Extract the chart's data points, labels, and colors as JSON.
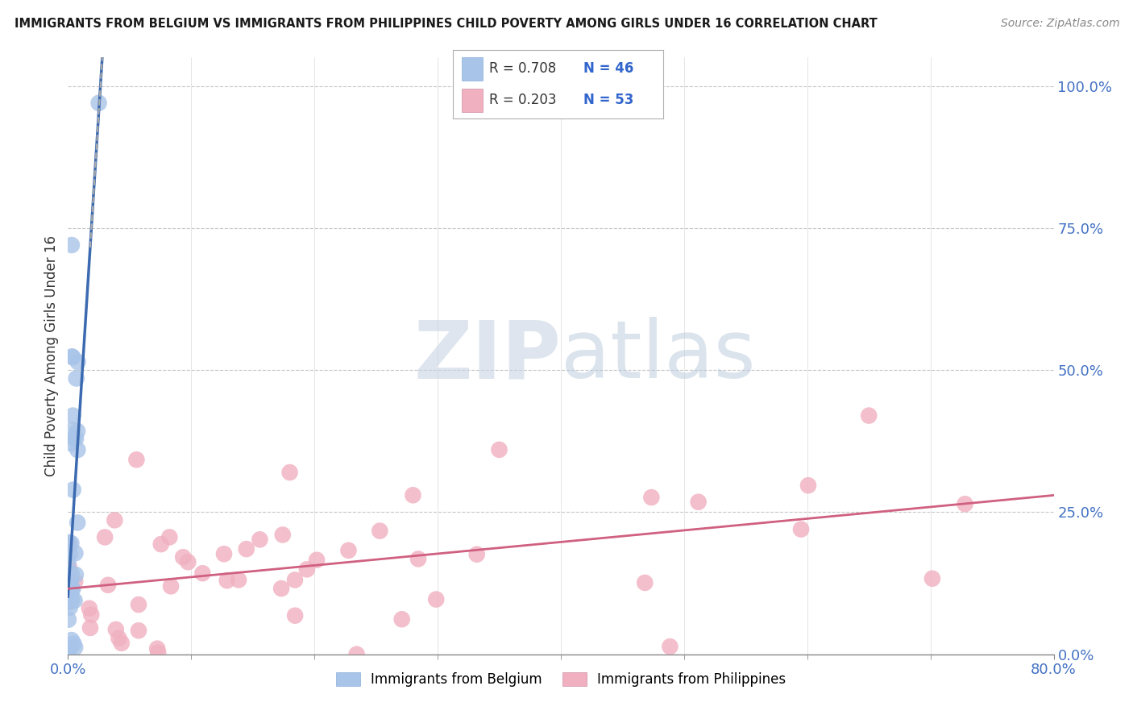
{
  "title": "IMMIGRANTS FROM BELGIUM VS IMMIGRANTS FROM PHILIPPINES CHILD POVERTY AMONG GIRLS UNDER 16 CORRELATION CHART",
  "source": "Source: ZipAtlas.com",
  "ylabel": "Child Poverty Among Girls Under 16",
  "right_ytick_labels": [
    "0.0%",
    "25.0%",
    "50.0%",
    "75.0%",
    "100.0%"
  ],
  "right_ytick_vals": [
    0.0,
    0.25,
    0.5,
    0.75,
    1.0
  ],
  "legend_blue_R": "R = 0.708",
  "legend_blue_N": "N = 46",
  "legend_pink_R": "R = 0.203",
  "legend_pink_N": "N = 53",
  "blue_color": "#a8c4e8",
  "blue_line_color": "#3c6ab0",
  "pink_color": "#f0b0c0",
  "pink_line_color": "#d06080",
  "watermark_zip": "ZIP",
  "watermark_atlas": "atlas",
  "watermark_color": "#cdd8ea",
  "background_color": "#ffffff",
  "xlim": [
    0.0,
    0.8
  ],
  "ylim": [
    0.0,
    1.05
  ]
}
